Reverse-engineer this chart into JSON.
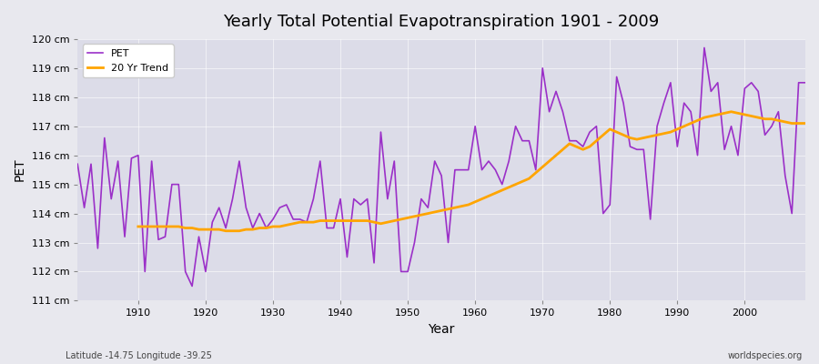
{
  "title": "Yearly Total Potential Evapotranspiration 1901 - 2009",
  "xlabel": "Year",
  "ylabel": "PET",
  "footer_left": "Latitude -14.75 Longitude -39.25",
  "footer_right": "worldspecies.org",
  "ylim": [
    111,
    120
  ],
  "yticks": [
    111,
    112,
    113,
    114,
    115,
    116,
    117,
    118,
    119,
    120
  ],
  "ytick_labels": [
    "111 cm",
    "112 cm",
    "113 cm",
    "114 cm",
    "115 cm",
    "116 cm",
    "117 cm",
    "118 cm",
    "119 cm",
    "120 cm"
  ],
  "pet_color": "#9B30C8",
  "trend_color": "#FFA500",
  "bg_color": "#E8E8EE",
  "plot_bg_color": "#DCDCE8",
  "pet_values": [
    115.7,
    114.2,
    115.7,
    112.8,
    116.6,
    114.5,
    115.8,
    113.2,
    115.9,
    116.0,
    112.0,
    115.8,
    113.1,
    113.2,
    115.0,
    115.0,
    112.0,
    111.5,
    113.2,
    112.0,
    113.7,
    114.2,
    113.5,
    114.5,
    115.8,
    114.2,
    113.5,
    114.0,
    113.5,
    113.8,
    114.2,
    114.3,
    113.8,
    113.8,
    113.7,
    114.5,
    115.8,
    113.5,
    113.5,
    114.5,
    112.5,
    114.5,
    114.3,
    114.5,
    112.3,
    116.8,
    114.5,
    115.8,
    112.0,
    112.0,
    113.0,
    114.5,
    114.2,
    115.8,
    115.3,
    113.0,
    115.5,
    115.5,
    115.5,
    117.0,
    115.5,
    115.8,
    115.5,
    115.0,
    115.8,
    117.0,
    116.5,
    116.5,
    115.5,
    119.0,
    117.5,
    118.2,
    117.5,
    116.5,
    116.5,
    116.3,
    116.8,
    117.0,
    114.0,
    114.3,
    118.7,
    117.8,
    116.3,
    116.2,
    116.2,
    113.8,
    117.0,
    117.8,
    118.5,
    116.3,
    117.8,
    117.5,
    116.0,
    119.7,
    118.2,
    118.5,
    116.2,
    117.0,
    116.0,
    118.3,
    118.5,
    118.2,
    116.7,
    117.0,
    117.5,
    115.3,
    114.0,
    118.5,
    118.5
  ],
  "trend_values": [
    113.55,
    113.55,
    113.55,
    113.55,
    113.55,
    113.55,
    113.55,
    113.5,
    113.5,
    113.45,
    113.45,
    113.45,
    113.45,
    113.4,
    113.4,
    113.4,
    113.45,
    113.45,
    113.5,
    113.5,
    113.55,
    113.55,
    113.6,
    113.65,
    113.7,
    113.7,
    113.7,
    113.75,
    113.75,
    113.75,
    113.75,
    113.75,
    113.75,
    113.75,
    113.75,
    113.7,
    113.65,
    113.7,
    113.75,
    113.8,
    113.85,
    113.9,
    113.95,
    114.0,
    114.05,
    114.1,
    114.15,
    114.2,
    114.25,
    114.3,
    114.4,
    114.5,
    114.6,
    114.7,
    114.8,
    114.9,
    115.0,
    115.1,
    115.2,
    115.4,
    115.6,
    115.8,
    116.0,
    116.2,
    116.4,
    116.3,
    116.2,
    116.3,
    116.5,
    116.7,
    116.9,
    116.8,
    116.7,
    116.6,
    116.55,
    116.6,
    116.65,
    116.7,
    116.75,
    116.8,
    116.9,
    117.0,
    117.1,
    117.2,
    117.3,
    117.35,
    117.4,
    117.45,
    117.5,
    117.45,
    117.4,
    117.35,
    117.3,
    117.25,
    117.25,
    117.2,
    117.15,
    117.1,
    117.1,
    117.1
  ]
}
